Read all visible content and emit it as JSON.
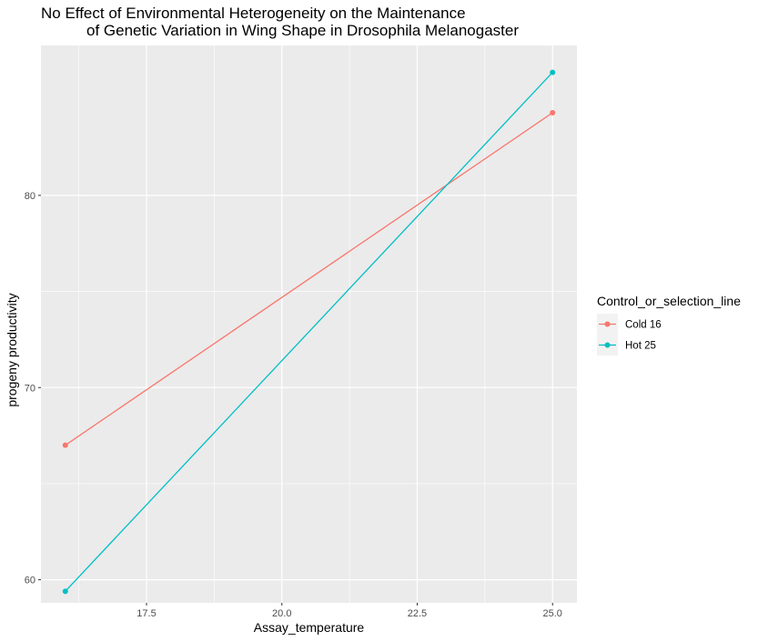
{
  "chart_data": {
    "type": "line",
    "title_lines": [
      "No Effect of Environmental Heterogeneity on the Maintenance",
      "of Genetic Variation in Wing Shape in Drosophila Melanogaster"
    ],
    "xlabel": "Assay_temperature",
    "ylabel": "progeny productivity",
    "xlim": [
      15.55,
      25.45
    ],
    "ylim": [
      58.8,
      87.8
    ],
    "x_ticks": [
      17.5,
      20.0,
      22.5,
      25.0
    ],
    "x_tick_labels": [
      "17.5",
      "20.0",
      "22.5",
      "25.0"
    ],
    "y_ticks": [
      60,
      70,
      80
    ],
    "y_tick_labels": [
      "60",
      "70",
      "80"
    ],
    "grid": true,
    "legend": {
      "title": "Control_or_selection_line",
      "position": "right"
    },
    "series": [
      {
        "name": "Cold 16",
        "color": "#F8766D",
        "x": [
          16,
          25
        ],
        "y": [
          67.0,
          84.3
        ]
      },
      {
        "name": "Hot 25",
        "color": "#00BFC4",
        "x": [
          16,
          25
        ],
        "y": [
          59.4,
          86.4
        ]
      }
    ]
  }
}
